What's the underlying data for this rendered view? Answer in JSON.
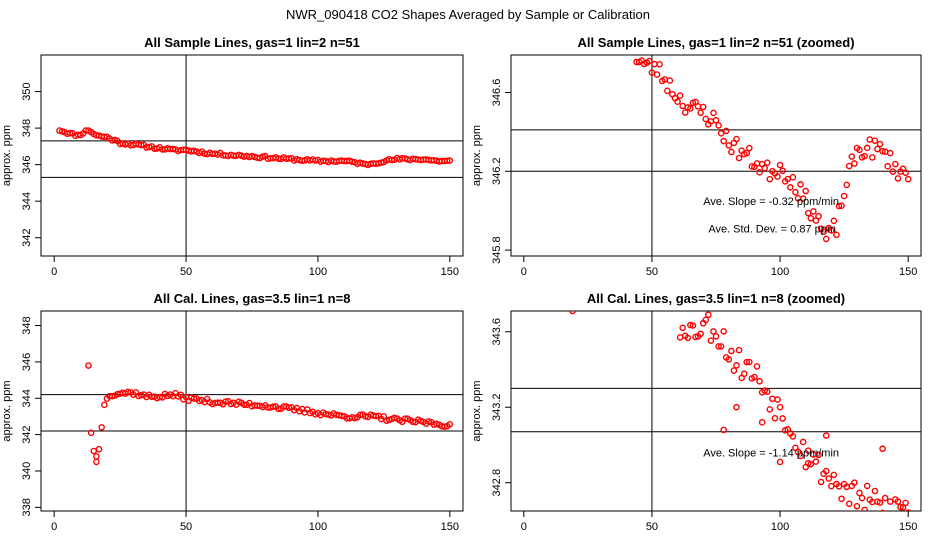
{
  "figure_title": "NWR_090418  CO2 Shapes Averaged by Sample or Calibration",
  "colors": {
    "points": "#ff0000",
    "axes": "#000000",
    "background": "#ffffff"
  },
  "chart_data": [
    {
      "type": "scatter",
      "title": "All Sample Lines, gas=1 lin=2 n=51",
      "xlabel": "",
      "ylabel": "approx. ppm",
      "xlim": [
        -5,
        155
      ],
      "ylim": [
        341,
        352
      ],
      "xticks": [
        "0",
        "50",
        "100",
        "150"
      ],
      "xtick_values": [
        0,
        50,
        100,
        150
      ],
      "yticks": [
        "342",
        "344",
        "346",
        "348",
        "350"
      ],
      "ytick_values": [
        342,
        344,
        346,
        348,
        350
      ],
      "vlines": [
        50
      ],
      "hlines": [
        345.3,
        347.3
      ],
      "annotations": [],
      "x_start": 2,
      "x_end": 150,
      "y_anchors": [
        [
          2,
          347.9
        ],
        [
          6,
          347.7
        ],
        [
          9,
          347.6
        ],
        [
          13,
          347.9
        ],
        [
          16,
          347.6
        ],
        [
          20,
          347.5
        ],
        [
          25,
          347.2
        ],
        [
          30,
          347.1
        ],
        [
          35,
          347.0
        ],
        [
          40,
          346.9
        ],
        [
          45,
          346.8
        ],
        [
          50,
          346.8
        ],
        [
          55,
          346.7
        ],
        [
          60,
          346.6
        ],
        [
          70,
          346.5
        ],
        [
          80,
          346.4
        ],
        [
          90,
          346.3
        ],
        [
          100,
          346.2
        ],
        [
          110,
          346.2
        ],
        [
          115,
          346.1
        ],
        [
          118,
          346.0
        ],
        [
          125,
          346.2
        ],
        [
          130,
          346.3
        ],
        [
          135,
          346.3
        ],
        [
          140,
          346.3
        ],
        [
          145,
          346.2
        ],
        [
          150,
          346.2
        ]
      ],
      "jitter": 0.07,
      "seed": 11,
      "outliers": []
    },
    {
      "type": "scatter",
      "title": "All Sample Lines, gas=1 lin=2 n=51 (zoomed)",
      "xlabel": "",
      "ylabel": "approx. ppm",
      "xlim": [
        -5,
        155
      ],
      "ylim": [
        345.77,
        346.79
      ],
      "xticks": [
        "0",
        "50",
        "100",
        "150"
      ],
      "xtick_values": [
        0,
        50,
        100,
        150
      ],
      "yticks": [
        "345.8",
        "346.2",
        "346.6"
      ],
      "ytick_values": [
        345.8,
        346.2,
        346.6
      ],
      "vlines": [
        50
      ],
      "hlines": [
        346.2,
        346.41
      ],
      "annotations": [
        "Ave. Slope =  -0.32  ppm/min",
        "Ave. Std. Dev. =  0.87  ppm"
      ],
      "annotation_values": {
        "slope": [
          70,
          346.03
        ],
        "stddev": [
          72,
          345.89
        ]
      },
      "x_start": 44,
      "x_end": 150,
      "y_anchors": [
        [
          44,
          346.78
        ],
        [
          48,
          346.73
        ],
        [
          52,
          346.72
        ],
        [
          56,
          346.65
        ],
        [
          60,
          346.58
        ],
        [
          65,
          346.52
        ],
        [
          70,
          346.5
        ],
        [
          75,
          346.45
        ],
        [
          80,
          346.35
        ],
        [
          85,
          346.3
        ],
        [
          90,
          346.25
        ],
        [
          95,
          346.2
        ],
        [
          100,
          346.22
        ],
        [
          105,
          346.15
        ],
        [
          110,
          346.05
        ],
        [
          115,
          345.95
        ],
        [
          118,
          345.85
        ],
        [
          122,
          345.92
        ],
        [
          126,
          346.15
        ],
        [
          130,
          346.3
        ],
        [
          135,
          346.32
        ],
        [
          140,
          346.3
        ],
        [
          145,
          346.22
        ],
        [
          150,
          346.17
        ]
      ],
      "jitter": 0.05,
      "seed": 23,
      "outliers": []
    },
    {
      "type": "scatter",
      "title": "All Cal. Lines, gas=3.5 lin=1 n=8",
      "xlabel": "",
      "ylabel": "approx. ppm",
      "xlim": [
        -5,
        155
      ],
      "ylim": [
        337.8,
        348.8
      ],
      "xticks": [
        "0",
        "50",
        "100",
        "150"
      ],
      "xtick_values": [
        0,
        50,
        100,
        150
      ],
      "yticks": [
        "338",
        "340",
        "342",
        "344",
        "346",
        "348"
      ],
      "ytick_values": [
        338,
        340,
        342,
        344,
        346,
        348
      ],
      "vlines": [
        50
      ],
      "hlines": [
        342.2,
        344.2
      ],
      "annotations": [],
      "x_start": 19,
      "x_end": 150,
      "y_anchors": [
        [
          19,
          343.7
        ],
        [
          21,
          344.2
        ],
        [
          25,
          344.3
        ],
        [
          30,
          344.3
        ],
        [
          35,
          344.1
        ],
        [
          40,
          344.1
        ],
        [
          45,
          344.2
        ],
        [
          50,
          344.0
        ],
        [
          55,
          343.9
        ],
        [
          60,
          343.8
        ],
        [
          70,
          343.7
        ],
        [
          80,
          343.6
        ],
        [
          90,
          343.4
        ],
        [
          100,
          343.2
        ],
        [
          110,
          343.0
        ],
        [
          120,
          343.0
        ],
        [
          130,
          342.8
        ],
        [
          140,
          342.7
        ],
        [
          145,
          342.6
        ],
        [
          150,
          342.5
        ]
      ],
      "jitter": 0.12,
      "seed": 37,
      "outliers": [
        [
          13,
          345.8
        ],
        [
          14,
          342.1
        ],
        [
          15,
          341.1
        ],
        [
          16,
          340.5
        ],
        [
          17,
          341.2
        ],
        [
          18,
          342.4
        ],
        [
          16,
          340.8
        ]
      ]
    },
    {
      "type": "scatter",
      "title": "All Cal. Lines, gas=3.5 lin=1 n=8 (zoomed)",
      "xlabel": "",
      "ylabel": "approx. ppm",
      "xlim": [
        -5,
        155
      ],
      "ylim": [
        342.65,
        343.71
      ],
      "xticks": [
        "0",
        "50",
        "100",
        "150"
      ],
      "xtick_values": [
        0,
        50,
        100,
        150
      ],
      "yticks": [
        "342.8",
        "343.2",
        "343.6"
      ],
      "ytick_values": [
        342.8,
        343.2,
        343.6
      ],
      "vlines": [
        50
      ],
      "hlines": [
        343.07,
        343.3
      ],
      "annotations": [
        "Ave. Slope =  -1.14  ppm/min"
      ],
      "annotation_values": {
        "slope": [
          70,
          342.94
        ]
      },
      "x_start": 62,
      "x_end": 150,
      "y_anchors": [
        [
          62,
          343.66
        ],
        [
          66,
          343.6
        ],
        [
          70,
          343.65
        ],
        [
          74,
          343.62
        ],
        [
          78,
          343.55
        ],
        [
          82,
          343.45
        ],
        [
          86,
          343.42
        ],
        [
          90,
          343.38
        ],
        [
          94,
          343.3
        ],
        [
          98,
          343.22
        ],
        [
          102,
          343.15
        ],
        [
          106,
          343.05
        ],
        [
          110,
          342.95
        ],
        [
          114,
          342.9
        ],
        [
          118,
          342.85
        ],
        [
          122,
          342.8
        ],
        [
          126,
          342.75
        ],
        [
          130,
          342.72
        ],
        [
          135,
          342.7
        ],
        [
          140,
          342.67
        ]
      ],
      "jitter": 0.08,
      "seed": 53,
      "outliers": [
        [
          19,
          343.71
        ],
        [
          78,
          343.08
        ],
        [
          83,
          343.2
        ],
        [
          93,
          343.12
        ],
        [
          100,
          342.91
        ],
        [
          111,
          342.97
        ],
        [
          140,
          342.98
        ],
        [
          118,
          343.05
        ],
        [
          61,
          343.57
        ]
      ]
    }
  ]
}
